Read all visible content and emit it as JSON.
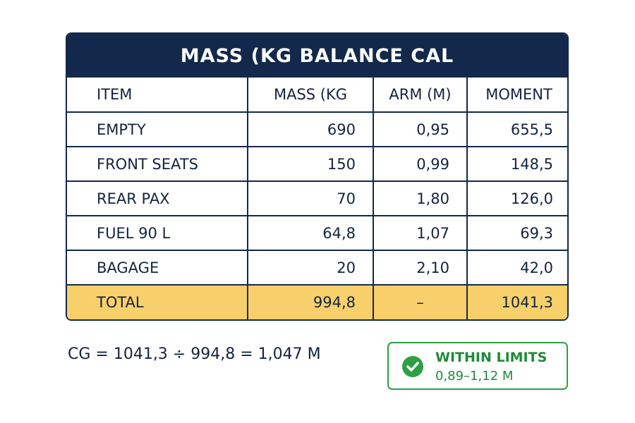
{
  "header": {
    "title": "MASS (KG  BALANCE CAL"
  },
  "table": {
    "columns": [
      "ITEM",
      "MASS (KG",
      "ARM (M)",
      "MOMENT"
    ],
    "rows": [
      [
        "EMPTY",
        "690",
        "0,95",
        "655,5"
      ],
      [
        "FRONT SEATS",
        "150",
        "0,99",
        "148,5"
      ],
      [
        "REAR PAX",
        "70",
        "1,80",
        "126,0"
      ],
      [
        "FUEL 90 L",
        "64,8",
        "1,07",
        "69,3"
      ],
      [
        "BAGAGE",
        "20",
        "2,10",
        "42,0"
      ]
    ],
    "total": [
      "TOTAL",
      "994,8",
      "–",
      "1041,3"
    ]
  },
  "formula": "CG = 1041,3 ÷ 994,8 = 1,047 M",
  "status": {
    "label": "WITHIN LIMITS",
    "range": "0,89–1,12 M"
  }
}
